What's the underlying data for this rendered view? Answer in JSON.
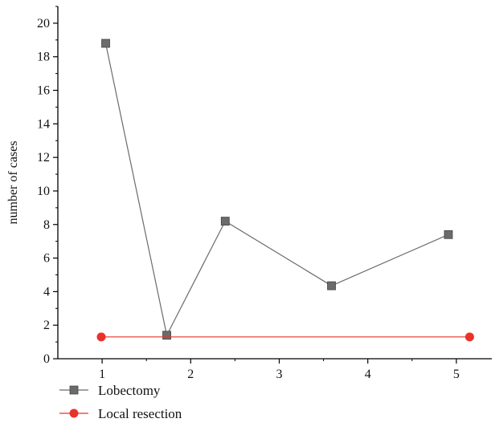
{
  "chart_data": {
    "type": "line",
    "xlabel": "",
    "ylabel": "number of cases",
    "xlim": [
      0.5,
      5.4
    ],
    "ylim": [
      0,
      21
    ],
    "x_ticks": [
      1,
      2,
      3,
      4,
      5
    ],
    "y_ticks": [
      0,
      2,
      4,
      6,
      8,
      10,
      12,
      14,
      16,
      18,
      20
    ],
    "grid": false,
    "legend_position": "bottom-left",
    "series": [
      {
        "name": "Lobectomy",
        "marker": "square",
        "color": "#6b6b6b",
        "x": [
          1.04,
          1.73,
          2.39,
          3.59,
          4.91
        ],
        "y": [
          18.8,
          1.4,
          8.2,
          4.35,
          7.4
        ]
      },
      {
        "name": "Local resection",
        "marker": "circle",
        "color": "#e8332a",
        "x": [
          0.99,
          5.15
        ],
        "y": [
          1.3,
          1.3
        ]
      }
    ]
  }
}
